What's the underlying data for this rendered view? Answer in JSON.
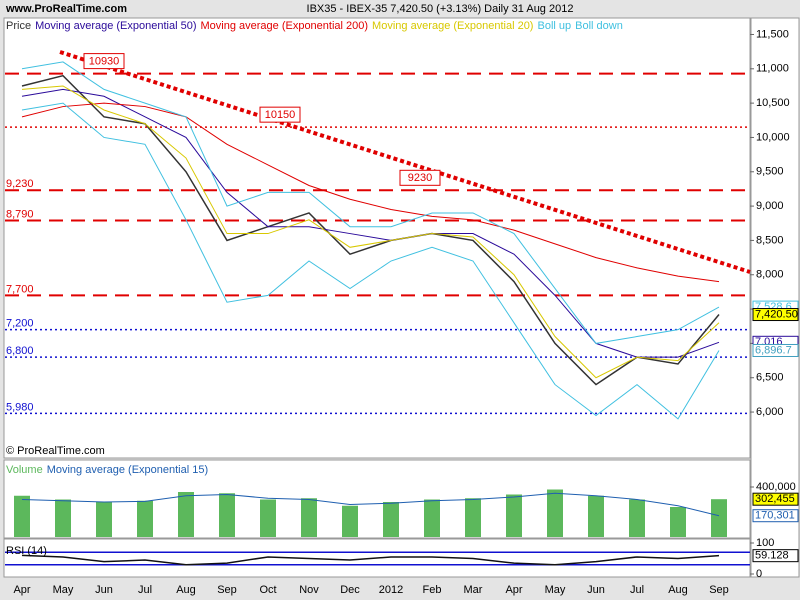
{
  "chart_data": [
    {
      "type": "line",
      "title": "IBX35 - IBEX-35   7,420.50 (+3.13%)   Daily  31 Aug 2012",
      "source": "www.ProRealTime.com",
      "copyright": "© ProRealTime.com",
      "categories": [
        "Apr",
        "May",
        "Jun",
        "Jul",
        "Aug",
        "Sep",
        "Oct",
        "Nov",
        "Dec",
        "2012",
        "Feb",
        "Mar",
        "Apr",
        "May",
        "Jun",
        "Jul",
        "Aug",
        "Sep"
      ],
      "series": [
        {
          "name": "Price",
          "color": "#333333",
          "values": [
            10750,
            10900,
            10300,
            10200,
            9500,
            8500,
            8700,
            8900,
            8300,
            8500,
            8600,
            8500,
            7900,
            7000,
            6400,
            6800,
            6700,
            7420.5
          ]
        },
        {
          "name": "Moving average (Exponential 50)",
          "color": "#2a0a9a",
          "values": [
            10600,
            10700,
            10600,
            10300,
            10000,
            9200,
            8700,
            8700,
            8600,
            8500,
            8600,
            8600,
            8300,
            7700,
            7000,
            6800,
            6800,
            7016
          ]
        },
        {
          "name": "Moving average (Exponential 200)",
          "color": "#e00000",
          "values": [
            10300,
            10450,
            10500,
            10450,
            10300,
            9900,
            9600,
            9300,
            9100,
            8950,
            8850,
            8800,
            8650,
            8450,
            8250,
            8100,
            7980,
            7900
          ]
        },
        {
          "name": "Moving average (Exponential 20)",
          "color": "#d8c800",
          "values": [
            10700,
            10750,
            10400,
            10200,
            9700,
            8600,
            8600,
            8800,
            8400,
            8500,
            8600,
            8550,
            8000,
            7100,
            6500,
            6800,
            6750,
            7300
          ]
        },
        {
          "name": "Boll up",
          "color": "#40c0e0",
          "values": [
            11000,
            11100,
            10700,
            10500,
            10300,
            9000,
            9200,
            9200,
            8700,
            8700,
            8900,
            8900,
            8600,
            7800,
            7000,
            7100,
            7200,
            7528.6
          ]
        },
        {
          "name": "Boll down",
          "color": "#40c0e0",
          "values": [
            10400,
            10500,
            10000,
            9900,
            8800,
            7600,
            7700,
            8200,
            7800,
            8200,
            8400,
            8200,
            7300,
            6400,
            5950,
            6400,
            5900,
            6896.7
          ]
        }
      ],
      "ylim": [
        5520,
        11740
      ],
      "yticks": [
        {
          "value": 6000,
          "label": "6,000"
        },
        {
          "value": 6500,
          "label": "6,500"
        },
        {
          "value": 7000,
          "label": "7,000"
        },
        {
          "value": 7500,
          "label": "7,500"
        },
        {
          "value": 8000,
          "label": "8,000"
        },
        {
          "value": 8500,
          "label": "8,500"
        },
        {
          "value": 9000,
          "label": "9,000"
        },
        {
          "value": 9500,
          "label": "9,500"
        },
        {
          "value": 10000,
          "label": "10,000"
        },
        {
          "value": 10500,
          "label": "10,500"
        },
        {
          "value": 11000,
          "label": "11,000"
        },
        {
          "value": 11500,
          "label": "11,500"
        }
      ],
      "levels": [
        {
          "value": 10930,
          "tag": "10930",
          "color": "#e00000",
          "style": "dash"
        },
        {
          "value": 10150,
          "tag": "10150",
          "color": "#e00000",
          "style": "dot"
        },
        {
          "value": 9230,
          "tag": "9230",
          "label": "9,230",
          "color": "#e00000",
          "style": "dash"
        },
        {
          "value": 8790,
          "label": "8,790",
          "color": "#e00000",
          "style": "dash"
        },
        {
          "value": 7700,
          "label": "7,700",
          "color": "#e00000",
          "style": "dash"
        },
        {
          "value": 7200,
          "label": "7,200",
          "color": "#1010d0",
          "style": "dot"
        },
        {
          "value": 6800,
          "label": "6,800",
          "color": "#1010d0",
          "style": "dot"
        },
        {
          "value": 5980,
          "label": "5,980",
          "color": "#1010d0",
          "style": "dot"
        }
      ],
      "last_labels": [
        {
          "value": 7528.6,
          "label": "7,528.6",
          "color": "#40c0e0",
          "fill": "#ffffff"
        },
        {
          "value": 7420.5,
          "label": "7,420.50",
          "color": "#000000",
          "fill": "#ffff00"
        },
        {
          "value": 7016,
          "label": "7,016",
          "color": "#2a0a9a",
          "fill": "#ffffff"
        },
        {
          "value": 6896.7,
          "label": "6,896.7",
          "color": "#40a0c0",
          "fill": "#ffffff"
        }
      ]
    },
    {
      "type": "bar",
      "series": [
        {
          "name": "Volume",
          "color": "#5cb85c",
          "kind": "bar",
          "values": [
            330000,
            300000,
            280000,
            290000,
            360000,
            350000,
            300000,
            310000,
            250000,
            280000,
            300000,
            310000,
            340000,
            380000,
            330000,
            300000,
            240000,
            302455
          ]
        },
        {
          "name": "Moving average (Exponential 15)",
          "color": "#1f5fb0",
          "kind": "line",
          "values": [
            300000,
            290000,
            280000,
            285000,
            330000,
            340000,
            310000,
            300000,
            260000,
            270000,
            290000,
            300000,
            320000,
            350000,
            330000,
            300000,
            250000,
            170301
          ]
        }
      ],
      "ylim": [
        0,
        600000
      ],
      "yticks": [
        {
          "value": 400000,
          "label": "400,000"
        }
      ],
      "last_labels": [
        {
          "value": 302455,
          "label": "302,455",
          "color": "#000000",
          "fill": "#ffff00"
        },
        {
          "value": 170301,
          "label": "170,301",
          "color": "#1f5fb0",
          "fill": "#ffffff"
        }
      ]
    },
    {
      "type": "line",
      "title": "RSI (14)",
      "series": [
        {
          "name": "RSI (14)",
          "color": "#111111",
          "values": [
            60,
            55,
            40,
            45,
            30,
            35,
            55,
            50,
            45,
            55,
            55,
            50,
            35,
            30,
            40,
            55,
            50,
            59.128
          ]
        }
      ],
      "ylim": [
        0,
        100
      ],
      "yticks": [
        100,
        0
      ],
      "levels": [
        {
          "value": 70,
          "color": "#1010d0",
          "style": "solid"
        },
        {
          "value": 30,
          "color": "#1010d0",
          "style": "solid"
        }
      ],
      "last_labels": [
        {
          "value": 59.128,
          "label": "59.128",
          "color": "#000000",
          "fill": "#ffffff"
        }
      ]
    }
  ]
}
